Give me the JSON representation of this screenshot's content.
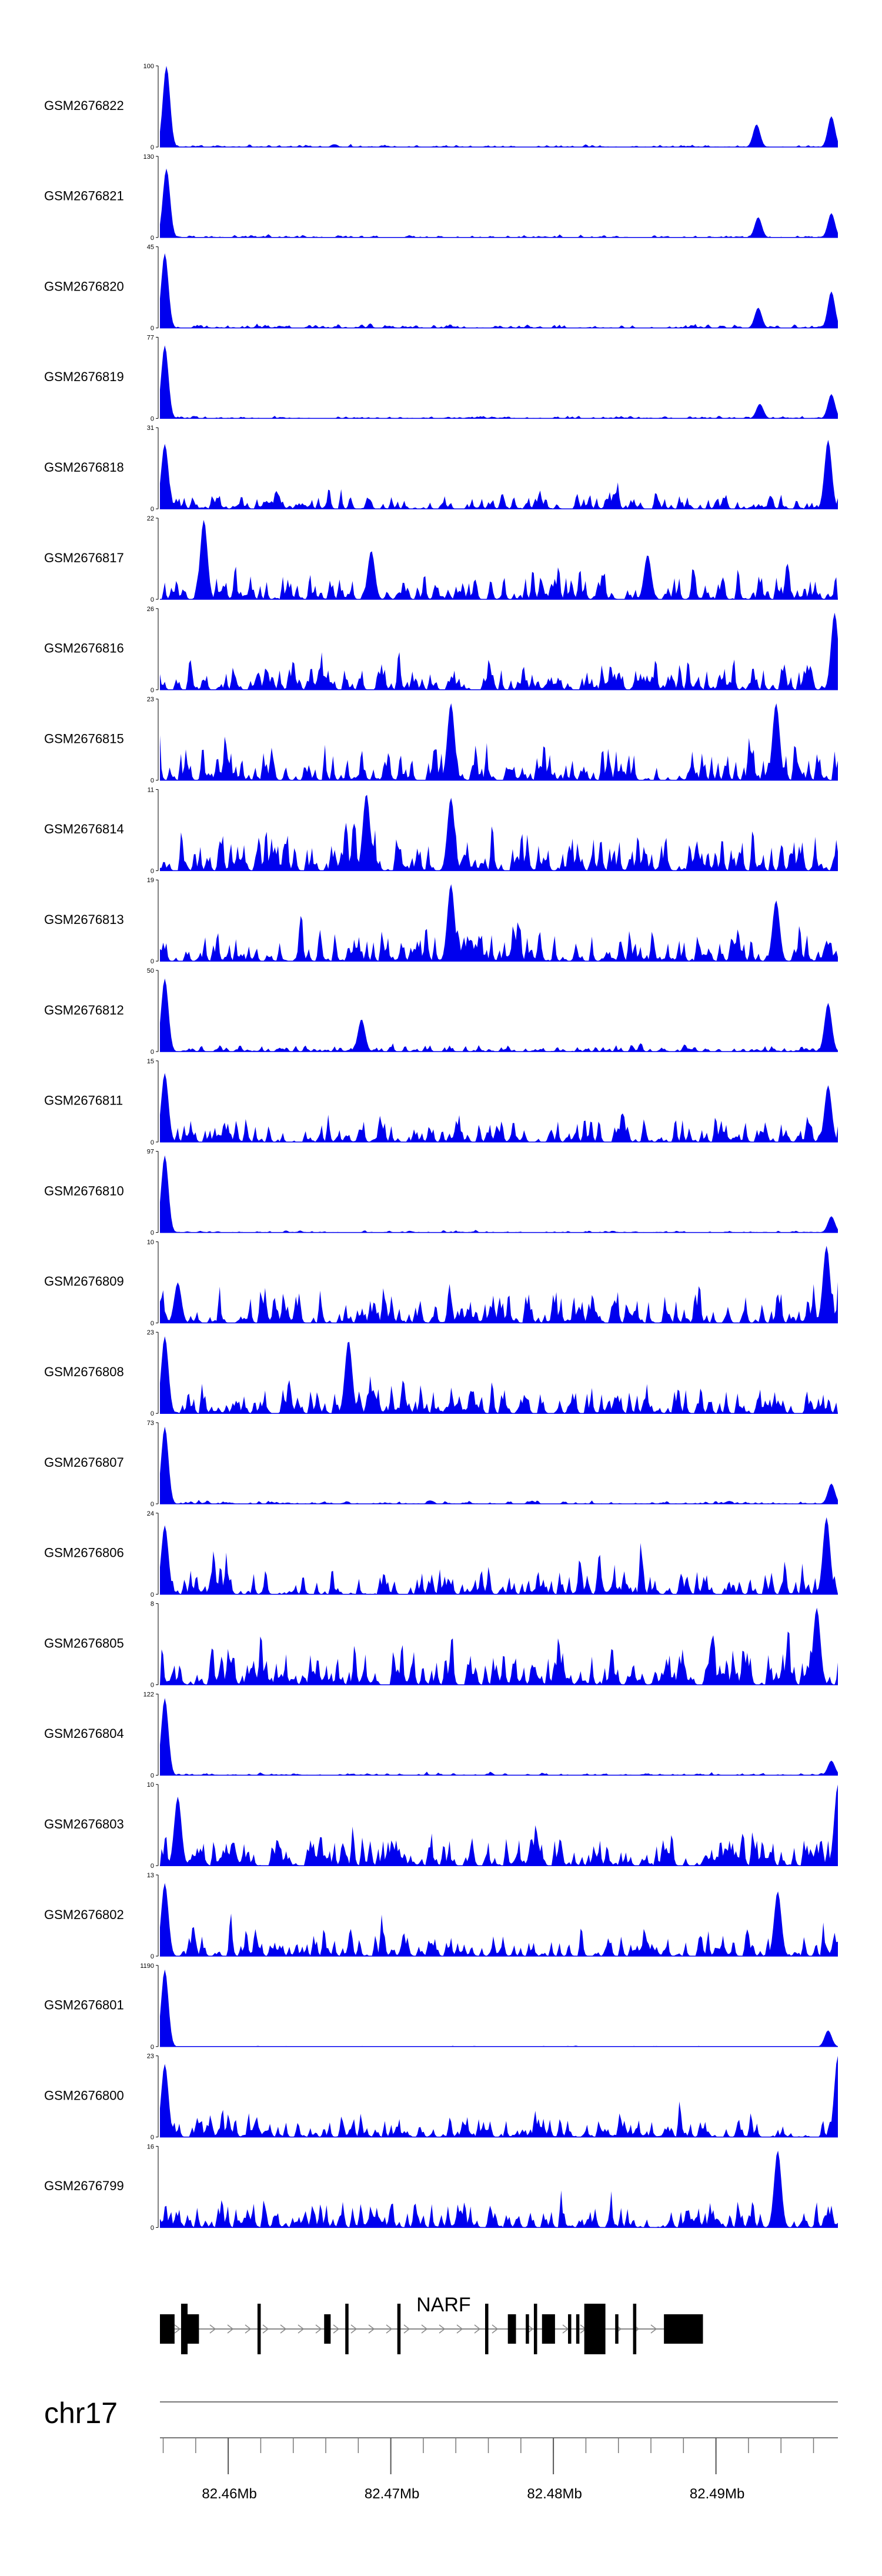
{
  "chart_data": {
    "type": "area",
    "fill_color": "#0000ee",
    "line_color": "#000000",
    "x_range": [
      82.4558,
      82.4975
    ],
    "x_unit": "Mb",
    "tracks": [
      {
        "name": "GSM2676822",
        "ymax": "100",
        "ymin": "0",
        "peaks": [
          [
            82.4562,
            1.0
          ],
          [
            82.4925,
            0.28
          ],
          [
            82.4971,
            0.38
          ]
        ],
        "noise": 0.04
      },
      {
        "name": "GSM2676821",
        "ymax": "130",
        "ymin": "0",
        "peaks": [
          [
            82.4562,
            0.85
          ],
          [
            82.4926,
            0.25
          ],
          [
            82.4971,
            0.3
          ]
        ],
        "noise": 0.04
      },
      {
        "name": "GSM2676820",
        "ymax": "45",
        "ymin": "0",
        "peaks": [
          [
            82.4561,
            0.92
          ],
          [
            82.4926,
            0.25
          ],
          [
            82.4971,
            0.45
          ]
        ],
        "noise": 0.06
      },
      {
        "name": "GSM2676819",
        "ymax": "77",
        "ymin": "0",
        "peaks": [
          [
            82.4561,
            0.9
          ],
          [
            82.4927,
            0.18
          ],
          [
            82.4971,
            0.3
          ]
        ],
        "noise": 0.04
      },
      {
        "name": "GSM2676818",
        "ymax": "31",
        "ymin": "0",
        "peaks": [
          [
            82.4561,
            0.8
          ],
          [
            82.4969,
            0.85
          ]
        ],
        "noise": 0.28
      },
      {
        "name": "GSM2676817",
        "ymax": "22",
        "ymin": "0",
        "peaks": [
          [
            82.4585,
            0.98
          ],
          [
            82.4688,
            0.6
          ],
          [
            82.4858,
            0.55
          ]
        ],
        "noise": 0.5
      },
      {
        "name": "GSM2676816",
        "ymax": "26",
        "ymin": "0",
        "peaks": [
          [
            82.4973,
            0.95
          ]
        ],
        "noise": 0.45
      },
      {
        "name": "GSM2676815",
        "ymax": "23",
        "ymin": "0",
        "peaks": [
          [
            82.4737,
            0.95
          ],
          [
            82.4937,
            0.95
          ]
        ],
        "noise": 0.6
      },
      {
        "name": "GSM2676814",
        "ymax": "11",
        "ymin": "0",
        "peaks": [
          [
            82.4737,
            0.9
          ],
          [
            82.4685,
            0.95
          ]
        ],
        "noise": 0.7
      },
      {
        "name": "GSM2676813",
        "ymax": "19",
        "ymin": "0",
        "peaks": [
          [
            82.4737,
            0.95
          ],
          [
            82.4937,
            0.75
          ]
        ],
        "noise": 0.6
      },
      {
        "name": "GSM2676812",
        "ymax": "50",
        "ymin": "0",
        "peaks": [
          [
            82.4561,
            0.9
          ],
          [
            82.4682,
            0.4
          ],
          [
            82.4969,
            0.6
          ]
        ],
        "noise": 0.12
      },
      {
        "name": "GSM2676811",
        "ymax": "15",
        "ymin": "0",
        "peaks": [
          [
            82.4561,
            0.85
          ],
          [
            82.4969,
            0.7
          ]
        ],
        "noise": 0.45
      },
      {
        "name": "GSM2676810",
        "ymax": "97",
        "ymin": "0",
        "peaks": [
          [
            82.4561,
            0.95
          ],
          [
            82.4971,
            0.2
          ]
        ],
        "noise": 0.03
      },
      {
        "name": "GSM2676809",
        "ymax": "10",
        "ymin": "0",
        "peaks": [
          [
            82.4569,
            0.5
          ],
          [
            82.4968,
            0.95
          ]
        ],
        "noise": 0.65
      },
      {
        "name": "GSM2676808",
        "ymax": "23",
        "ymin": "0",
        "peaks": [
          [
            82.4561,
            0.95
          ],
          [
            82.4674,
            0.9
          ]
        ],
        "noise": 0.5
      },
      {
        "name": "GSM2676807",
        "ymax": "73",
        "ymin": "0",
        "peaks": [
          [
            82.4561,
            0.95
          ],
          [
            82.4971,
            0.25
          ]
        ],
        "noise": 0.05
      },
      {
        "name": "GSM2676806",
        "ymax": "24",
        "ymin": "0",
        "peaks": [
          [
            82.4561,
            0.85
          ],
          [
            82.4968,
            0.95
          ]
        ],
        "noise": 0.5
      },
      {
        "name": "GSM2676805",
        "ymax": "8",
        "ymin": "0",
        "peaks": [
          [
            82.4962,
            0.95
          ]
        ],
        "noise": 0.7
      },
      {
        "name": "GSM2676804",
        "ymax": "122",
        "ymin": "0",
        "peaks": [
          [
            82.4561,
            0.95
          ],
          [
            82.4971,
            0.18
          ]
        ],
        "noise": 0.04
      },
      {
        "name": "GSM2676803",
        "ymax": "10",
        "ymin": "0",
        "peaks": [
          [
            82.4569,
            0.85
          ],
          [
            82.4975,
            1.0
          ]
        ],
        "noise": 0.55
      },
      {
        "name": "GSM2676802",
        "ymax": "13",
        "ymin": "0",
        "peaks": [
          [
            82.4561,
            0.9
          ],
          [
            82.4938,
            0.8
          ]
        ],
        "noise": 0.45
      },
      {
        "name": "GSM2676801",
        "ymax": "1190",
        "ymin": "0",
        "peaks": [
          [
            82.4561,
            0.95
          ],
          [
            82.4969,
            0.2
          ]
        ],
        "noise": 0.01
      },
      {
        "name": "GSM2676800",
        "ymax": "23",
        "ymin": "0",
        "peaks": [
          [
            82.4561,
            0.9
          ],
          [
            82.4975,
            1.0
          ]
        ],
        "noise": 0.38
      },
      {
        "name": "GSM2676799",
        "ymax": "16",
        "ymin": "0",
        "peaks": [
          [
            82.4938,
            0.95
          ]
        ],
        "noise": 0.5
      }
    ],
    "gene": {
      "name": "NARF",
      "start": 82.4558,
      "end": 82.4878,
      "exons": [
        [
          82.4558,
          82.4567
        ],
        [
          82.4571,
          82.4575
        ],
        [
          82.4575,
          82.4582
        ],
        [
          82.4618,
          82.462
        ],
        [
          82.4659,
          82.4663
        ],
        [
          82.4672,
          82.4674
        ],
        [
          82.4704,
          82.4706
        ],
        [
          82.4758,
          82.476
        ],
        [
          82.4772,
          82.4777
        ],
        [
          82.4783,
          82.4785
        ],
        [
          82.4788,
          82.479
        ],
        [
          82.4793,
          82.4801
        ],
        [
          82.4809,
          82.4811
        ],
        [
          82.4814,
          82.4816
        ],
        [
          82.4819,
          82.4832
        ],
        [
          82.4838,
          82.484
        ],
        [
          82.4849,
          82.4851
        ],
        [
          82.4868,
          82.4892
        ]
      ]
    },
    "chromosome": "chr17",
    "ticks": [
      {
        "value": 82.46,
        "label": "82.46Mb"
      },
      {
        "value": 82.47,
        "label": "82.47Mb"
      },
      {
        "value": 82.48,
        "label": "82.48Mb"
      },
      {
        "value": 82.49,
        "label": "82.49Mb"
      }
    ],
    "minor_tick_step": 0.002
  }
}
